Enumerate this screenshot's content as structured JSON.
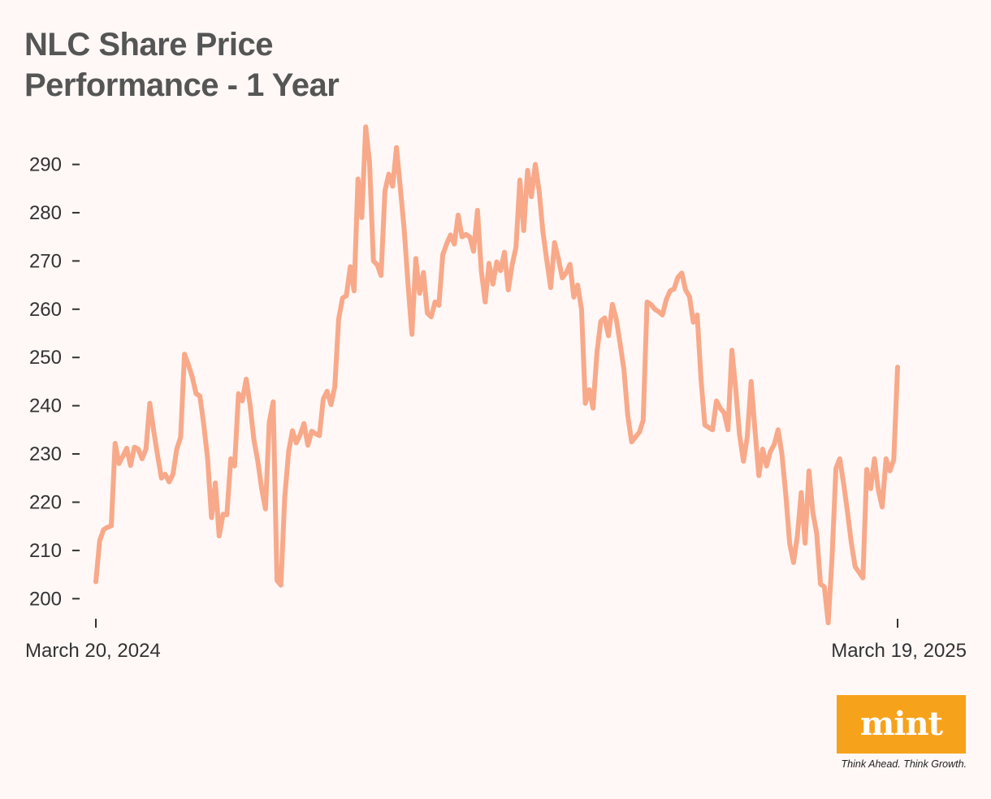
{
  "title": {
    "line1": "NLC Share Price",
    "line2": "Performance - 1 Year"
  },
  "logo": {
    "wordmark": "mint",
    "tagline": "Think Ahead. Think Growth."
  },
  "colors": {
    "background": "#fff8f6",
    "line": "#f8a989",
    "logo": "#f7a21b",
    "text": "#333333",
    "title": "#555555"
  },
  "chart_data": {
    "type": "line",
    "title": "NLC Share Price Performance - 1 Year",
    "xlabel": "",
    "ylabel": "",
    "x_tick_labels": [
      "March 20, 2024",
      "March 19, 2025"
    ],
    "x_range": [
      "2024-03-20",
      "2025-03-19"
    ],
    "ylim": [
      194.5,
      298
    ],
    "y_ticks": [
      200,
      210,
      220,
      230,
      240,
      250,
      260,
      270,
      280,
      290
    ],
    "grid": false,
    "legend": "none",
    "series": [
      {
        "name": "",
        "values": [
          203.5,
          212.0,
          214.3,
          214.8,
          215.1,
          232.2,
          228.0,
          229.5,
          231.2,
          227.6,
          231.4,
          231.0,
          229.0,
          231.0,
          240.5,
          234.8,
          229.8,
          225.0,
          225.8,
          224.2,
          225.8,
          231.0,
          233.5,
          250.7,
          248.5,
          246.0,
          242.5,
          242.0,
          236.0,
          229.0,
          216.8,
          224.0,
          213.0,
          217.5,
          217.4,
          229.0,
          227.5,
          242.5,
          241.0,
          245.5,
          240.2,
          232.9,
          228.6,
          222.9,
          218.6,
          236.6,
          240.8,
          203.8,
          202.8,
          220.9,
          230.5,
          234.8,
          232.3,
          234.0,
          236.3,
          231.8,
          234.7,
          234.2,
          233.8,
          241.4,
          243.0,
          240.2,
          244.0,
          258.0,
          262.3,
          262.8,
          268.8,
          263.8,
          287.0,
          279.0,
          297.8,
          290.5,
          270.0,
          269.2,
          267.0,
          284.5,
          288.0,
          285.5,
          293.5,
          285.0,
          276.5,
          265.0,
          254.8,
          270.5,
          263.3,
          267.6,
          259.2,
          258.4,
          261.5,
          260.8,
          271.3,
          273.5,
          275.4,
          273.5,
          279.5,
          275.0,
          275.5,
          275.0,
          272.0,
          280.5,
          268.0,
          261.5,
          269.5,
          265.2,
          269.8,
          268.0,
          271.8,
          264.0,
          269.2,
          272.8,
          286.8,
          276.3,
          288.8,
          283.3,
          290.0,
          284.5,
          276.0,
          270.0,
          264.5,
          273.8,
          270.5,
          266.5,
          267.5,
          269.3,
          262.5,
          265.0,
          260.0,
          240.5,
          243.3,
          239.5,
          251.0,
          257.5,
          258.2,
          254.5,
          261.0,
          258.0,
          253.0,
          247.5,
          238.0,
          232.5,
          233.5,
          234.5,
          237.0,
          261.5,
          261.0,
          260.0,
          259.5,
          258.8,
          262.0,
          263.8,
          264.2,
          266.6,
          267.5,
          264.0,
          262.6,
          257.3,
          258.8,
          245.5,
          236.0,
          235.5,
          235.0,
          241.0,
          239.5,
          238.5,
          235.0,
          251.5,
          243.5,
          234.0,
          228.5,
          233.5,
          245.0,
          235.0,
          225.5,
          231.0,
          227.5,
          230.5,
          232.0,
          235.0,
          230.0,
          221.5,
          211.5,
          207.5,
          213.0,
          222.0,
          211.5,
          226.5,
          218.0,
          213.5,
          203.0,
          202.5,
          195.0,
          208.5,
          227.0,
          229.0,
          223.8,
          218.0,
          211.5,
          206.6,
          205.5,
          204.3,
          226.8,
          222.8,
          229.0,
          222.5,
          219.0,
          229.0,
          226.5,
          228.8,
          248.0
        ]
      }
    ]
  }
}
